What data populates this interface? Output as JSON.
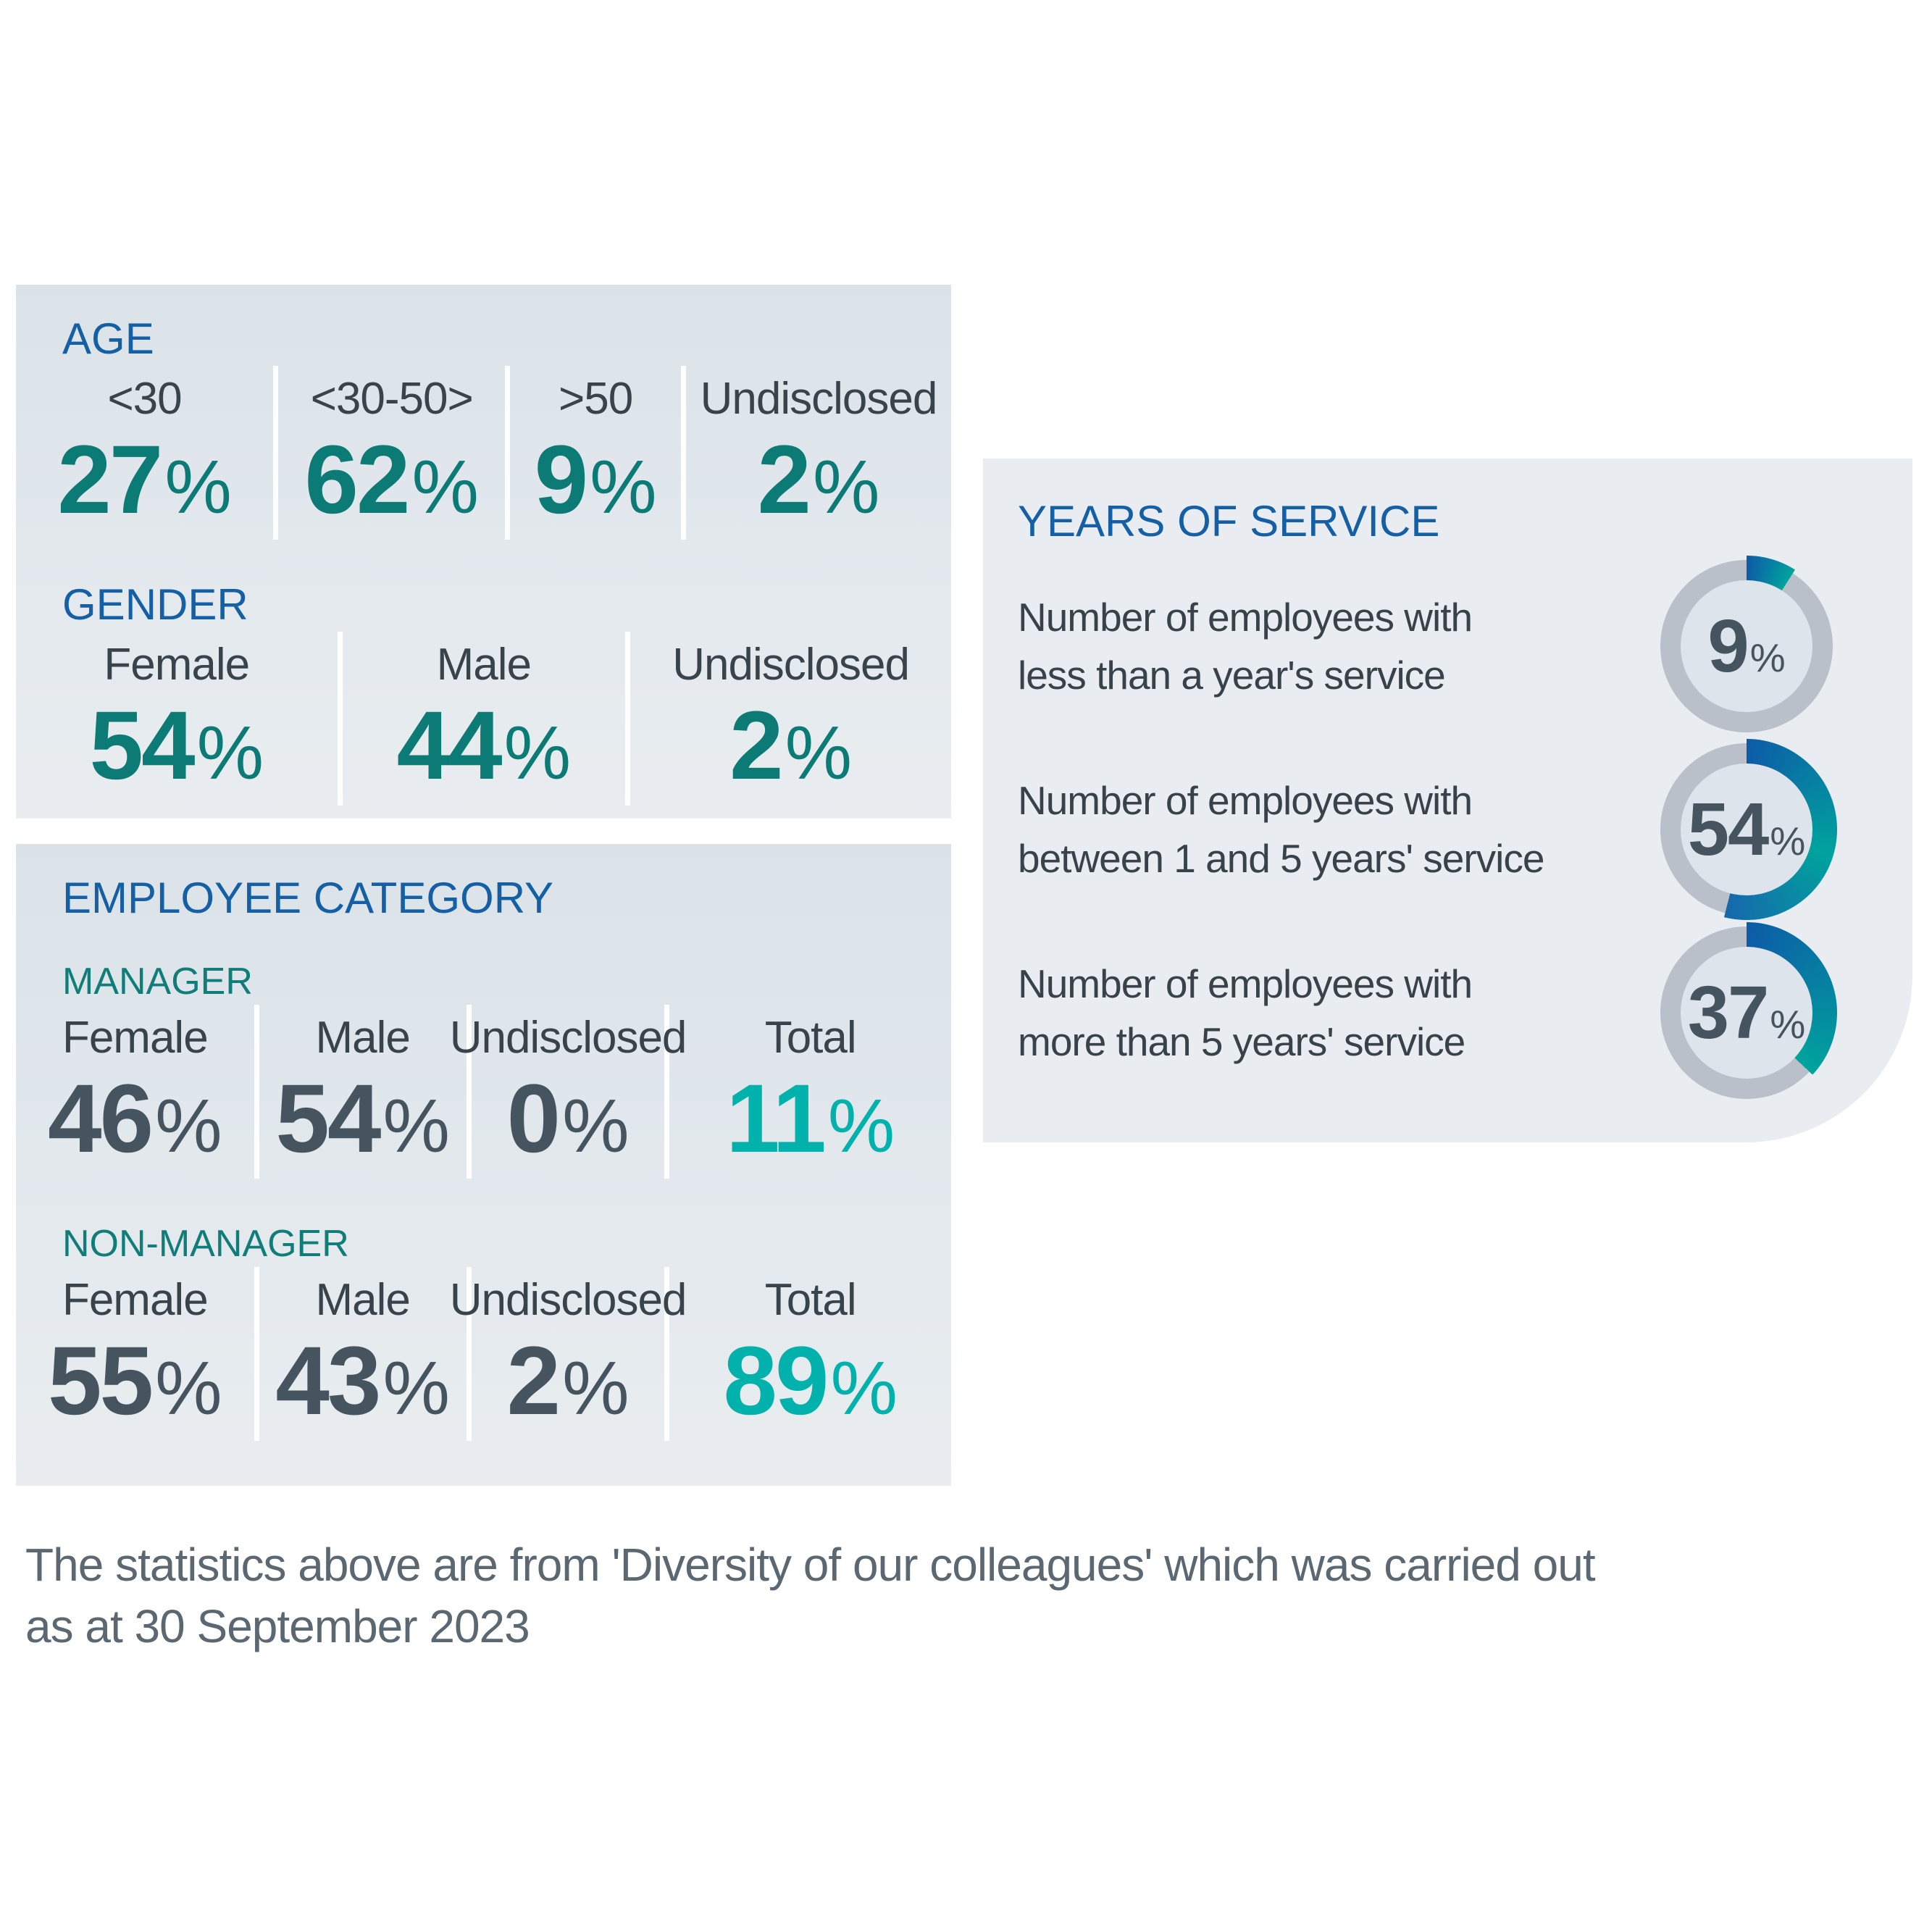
{
  "age_panel": {
    "title": "AGE",
    "items": [
      {
        "label": "<30",
        "value": "27"
      },
      {
        "label": "<30-50>",
        "value": "62"
      },
      {
        "label": ">50",
        "value": "9"
      },
      {
        "label": "Undisclosed",
        "value": "2"
      }
    ]
  },
  "gender_panel": {
    "title": "GENDER",
    "items": [
      {
        "label": "Female",
        "value": "54"
      },
      {
        "label": "Male",
        "value": "44"
      },
      {
        "label": "Undisclosed",
        "value": "2"
      }
    ]
  },
  "category_panel": {
    "title": "EMPLOYEE CATEGORY",
    "manager": {
      "title": "MANAGER",
      "items": [
        {
          "label": "Female",
          "value": "46"
        },
        {
          "label": "Male",
          "value": "54"
        },
        {
          "label": "Undisclosed",
          "value": "0"
        },
        {
          "label": "Total",
          "value": "11"
        }
      ]
    },
    "non_manager": {
      "title": "NON-MANAGER",
      "items": [
        {
          "label": "Female",
          "value": "55"
        },
        {
          "label": "Male",
          "value": "43"
        },
        {
          "label": "Undisclosed",
          "value": "2"
        },
        {
          "label": "Total",
          "value": "89"
        }
      ]
    }
  },
  "service_panel": {
    "title": "YEARS OF SERVICE",
    "items": [
      {
        "line1": "Number of employees with",
        "line2": "less than a year's service",
        "value": 9
      },
      {
        "line1": "Number of employees with",
        "line2": "between 1 and 5 years' service",
        "value": 54
      },
      {
        "line1": "Number of employees with",
        "line2": "more than 5 years' service",
        "value": 37
      }
    ]
  },
  "footer": {
    "line1": "The statistics above are from 'Diversity of our colleagues' which was carried out",
    "line2": "as at 30 September 2023"
  },
  "strings": {
    "percent": "%"
  },
  "colors": {
    "header_blue": "#155fa5",
    "subheader_teal": "#117d79",
    "number_teal": "#0c7a75",
    "number_slate": "#46545f",
    "number_accent": "#00b2ab",
    "label_slate": "#39434c",
    "footer_gray": "#5b6872",
    "panel_bg_top": "#dbe3e9",
    "panel_bg_bottom": "#e9edf0",
    "service_panel_bg": "#e9edf1",
    "ring_gray": "#b9c0c9",
    "arc_start": "#0d5ba7",
    "arc_end": "#00a39d",
    "arc_mid_tip": "#1668ac",
    "donut_hole": "#dde4ec",
    "divider_white": "#ffffff"
  },
  "chart_data": [
    {
      "type": "table",
      "title": "AGE",
      "categories": [
        "<30",
        "<30-50>",
        ">50",
        "Undisclosed"
      ],
      "values": [
        27,
        62,
        9,
        2
      ],
      "unit": "%"
    },
    {
      "type": "table",
      "title": "GENDER",
      "categories": [
        "Female",
        "Male",
        "Undisclosed"
      ],
      "values": [
        54,
        44,
        2
      ],
      "unit": "%"
    },
    {
      "type": "table",
      "title": "EMPLOYEE CATEGORY - MANAGER",
      "categories": [
        "Female",
        "Male",
        "Undisclosed",
        "Total"
      ],
      "values": [
        46,
        54,
        0,
        11
      ],
      "unit": "%"
    },
    {
      "type": "table",
      "title": "EMPLOYEE CATEGORY - NON-MANAGER",
      "categories": [
        "Female",
        "Male",
        "Undisclosed",
        "Total"
      ],
      "values": [
        55,
        43,
        2,
        89
      ],
      "unit": "%"
    },
    {
      "type": "pie",
      "title": "YEARS OF SERVICE",
      "categories": [
        "less than a year's service",
        "between 1 and 5 years' service",
        "more than 5 years' service"
      ],
      "values": [
        9,
        54,
        37
      ],
      "unit": "%",
      "style": "donut-progress",
      "arc_start_angle_deg": 0,
      "direction": "clockwise"
    }
  ]
}
